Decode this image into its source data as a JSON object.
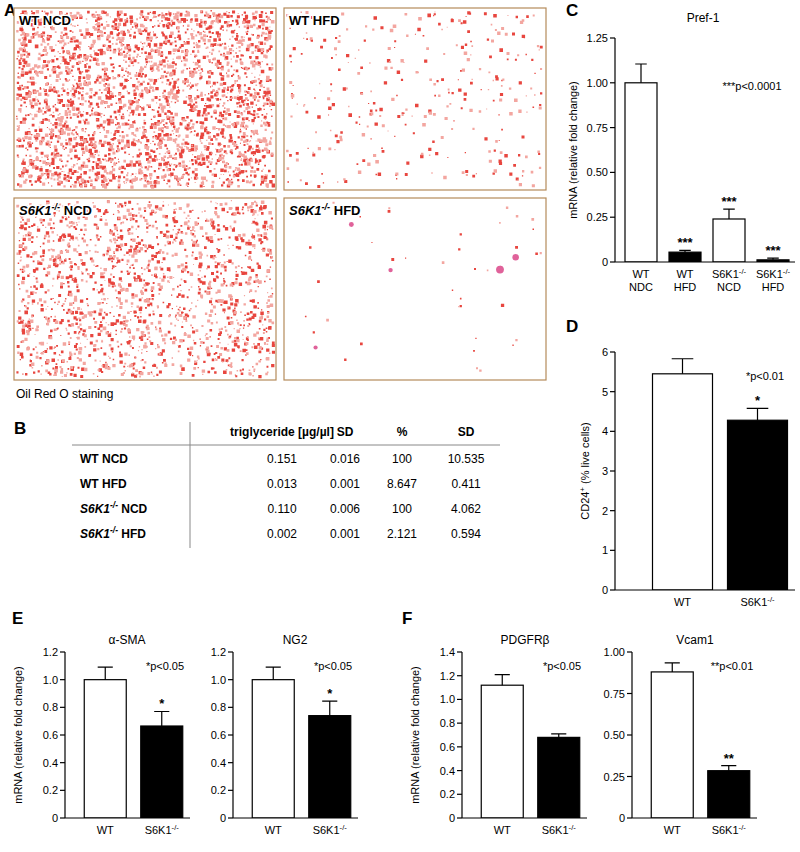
{
  "panel_labels": [
    "A",
    "B",
    "C",
    "D",
    "E",
    "F"
  ],
  "images": {
    "items": [
      {
        "label": "WT NCD"
      },
      {
        "label": "WT HFD"
      },
      {
        "label": "S6K1-/- NCD"
      },
      {
        "label": "S6K1-/- HFD"
      }
    ],
    "caption": "Oil Red O staining"
  },
  "table": {
    "header": [
      "triglyceride [µg/µl]",
      "SD",
      "%",
      "SD"
    ],
    "rows": [
      [
        "WT NCD",
        "0.151",
        "0.016",
        "100",
        "10.535"
      ],
      [
        "WT HFD",
        "0.013",
        "0.001",
        "8.647",
        "0.411"
      ],
      [
        "S6K1-/- NCD",
        "0.110",
        "0.006",
        "100",
        "4.062"
      ],
      [
        "S6K1-/- HFD",
        "0.002",
        "0.001",
        "2.121",
        "0.594"
      ]
    ]
  },
  "chart_data": [
    {
      "type": "bar",
      "title": "Pref-1",
      "y_label": "mRNA (relative fold change)",
      "categories": [
        "WT NDC",
        "WT HFD",
        "S6K1-/- NCD",
        "S6K1-/- HFD"
      ],
      "values": [
        1.0,
        0.055,
        0.24,
        0.012
      ],
      "errors": [
        0.105,
        0.01,
        0.055,
        0.01
      ],
      "colors": [
        "#ffffff",
        "#000000",
        "#ffffff",
        "#000000"
      ],
      "significance": [
        null,
        "***",
        "***",
        "***"
      ],
      "annotation": "***p<0.0001",
      "ylim": [
        0,
        1.25
      ],
      "yticks": [
        0,
        0.25,
        {
          "value": 0.5,
          "label": "0.50"
        },
        0.75,
        {
          "value": 1,
          "label": "1.00"
        },
        1.25
      ]
    },
    {
      "type": "bar",
      "y_label": "CD24+ (% live cells)",
      "categories": [
        "WT",
        "S6K1-/-"
      ],
      "values": [
        5.45,
        4.28
      ],
      "errors": [
        0.38,
        0.3
      ],
      "colors": [
        "#ffffff",
        "#000000"
      ],
      "significance": [
        null,
        "*"
      ],
      "annotation": "*p<0.01",
      "ylim": [
        0,
        6
      ],
      "yticks": [
        0,
        1,
        2,
        3,
        4,
        5,
        6
      ]
    },
    {
      "type": "bar",
      "title": "α-SMA",
      "y_label": "mRNA (relative fold change)",
      "categories": [
        "WT",
        "S6K1-/-"
      ],
      "values": [
        1.0,
        0.665
      ],
      "errors": [
        0.09,
        0.105
      ],
      "colors": [
        "#ffffff",
        "#000000"
      ],
      "significance": [
        null,
        "*"
      ],
      "annotation": "*p<0.05",
      "ylim": [
        0,
        1.2
      ],
      "yticks": [
        0,
        0.2,
        0.4,
        0.6,
        0.8,
        {
          "value": 1,
          "label": "1.0"
        },
        1.2
      ]
    },
    {
      "type": "bar",
      "title": "NG2",
      "categories": [
        "WT",
        "S6K1-/-"
      ],
      "values": [
        1.0,
        0.74
      ],
      "errors": [
        0.09,
        0.105
      ],
      "colors": [
        "#ffffff",
        "#000000"
      ],
      "significance": [
        null,
        "*"
      ],
      "annotation": "*p<0.05",
      "ylim": [
        0,
        1.2
      ],
      "yticks": [
        0,
        0.2,
        0.4,
        0.6,
        0.8,
        {
          "value": 1,
          "label": "1.0"
        },
        1.2
      ]
    },
    {
      "type": "bar",
      "title": "PDGFRβ",
      "y_label": "mRNA (relative fold change)",
      "categories": [
        "WT",
        "S6K1-/-"
      ],
      "values": [
        1.12,
        0.68
      ],
      "errors": [
        0.09,
        0.03
      ],
      "colors": [
        "#ffffff",
        "#000000"
      ],
      "annotation": "*p<0.05",
      "ylim": [
        0,
        1.4
      ],
      "yticks": [
        0,
        0.2,
        0.4,
        0.6,
        0.8,
        {
          "value": 1,
          "label": "1.0"
        },
        1.2,
        1.4
      ]
    },
    {
      "type": "bar",
      "title": "Vcam1",
      "categories": [
        "WT",
        "S6K1-/-"
      ],
      "values": [
        0.88,
        0.285
      ],
      "errors": [
        0.055,
        0.03
      ],
      "colors": [
        "#ffffff",
        "#000000"
      ],
      "significance": [
        null,
        "**"
      ],
      "annotation": "**p<0.01",
      "ylim": [
        0,
        1
      ],
      "yticks": [
        0,
        0.25,
        {
          "value": 0.5,
          "label": "0.50"
        },
        0.75,
        {
          "value": 1,
          "label": "1.00"
        }
      ]
    }
  ]
}
